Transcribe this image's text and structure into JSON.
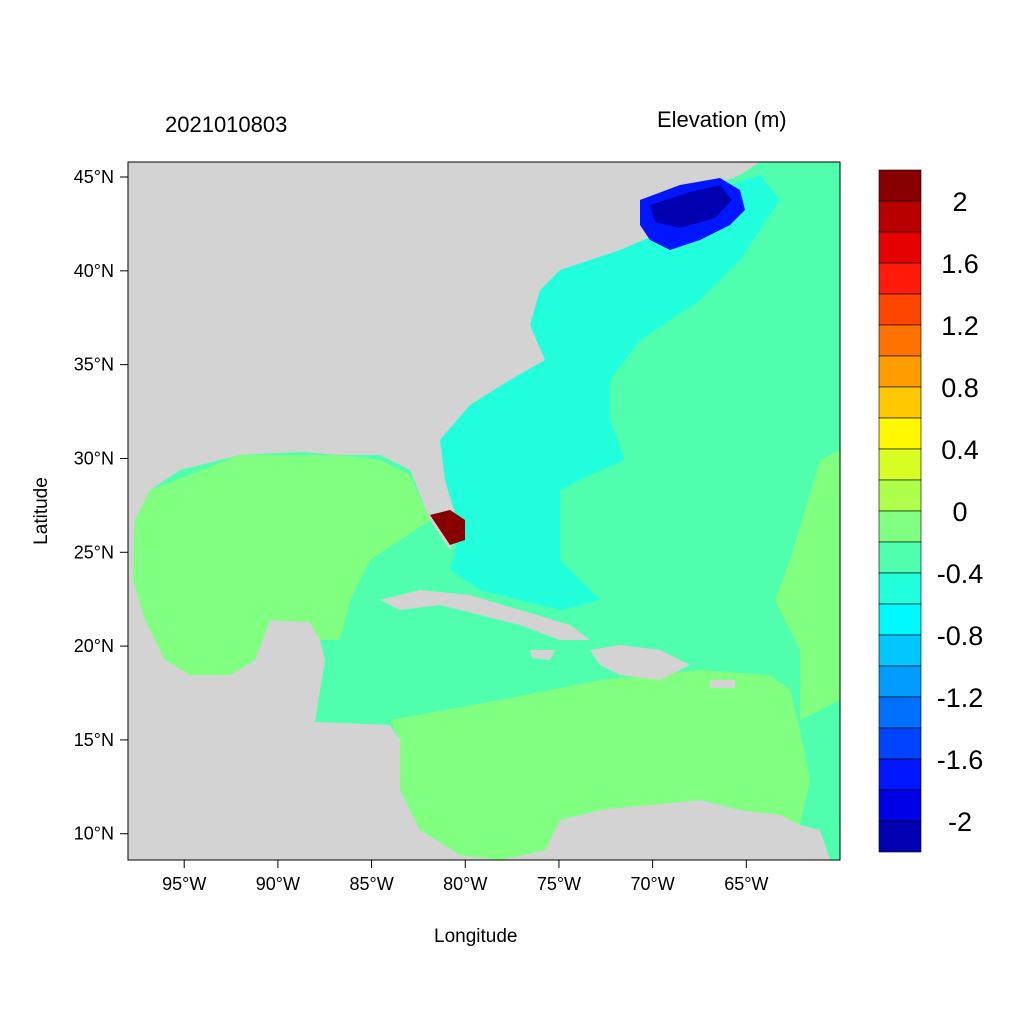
{
  "title_left": "2021010803",
  "title_right": "Elevation (m)",
  "xlabel": "Longitude",
  "ylabel": "Latitude",
  "x_ticks": [
    "95°W",
    "90°W",
    "85°W",
    "80°W",
    "75°W",
    "70°W",
    "65°W"
  ],
  "y_ticks": [
    "45°N",
    "40°N",
    "35°N",
    "30°N",
    "25°N",
    "20°N",
    "15°N",
    "10°N"
  ],
  "map_extent": {
    "lon": [
      -98.0,
      -60.0
    ],
    "lat": [
      8.6,
      45.8
    ]
  },
  "land_color": "#D3D3D3",
  "colorbar": {
    "labels": [
      "2",
      "1.6",
      "1.2",
      "0.8",
      "0.4",
      "0",
      "-0.4",
      "-0.8",
      "-1.2",
      "-1.6",
      "-2"
    ],
    "levels_range": [
      -2.2,
      2.2
    ],
    "step": 0.2,
    "colors": [
      "#880000",
      "#B80000",
      "#E60000",
      "#FF1A0A",
      "#FF4600",
      "#FF7200",
      "#FF9C00",
      "#FFC800",
      "#FFF800",
      "#D8FF22",
      "#AEFF4C",
      "#80FF80",
      "#50FFAE",
      "#22FFDC",
      "#00F8FF",
      "#00C8FF",
      "#009CFF",
      "#0070FF",
      "#0044FF",
      "#0016FF",
      "#0000E6",
      "#0000B0"
    ]
  },
  "regions": {
    "open_atlantic": "#50FFAE",
    "gulf_of_mexico": "#80FF80",
    "southern_caribbean": "#80FF80",
    "western_atlantic_shelf": "#22FFDC",
    "gulf_of_maine": "#0016FF",
    "gulf_of_maine_core": "#0000B0",
    "south_florida": "#880000"
  }
}
